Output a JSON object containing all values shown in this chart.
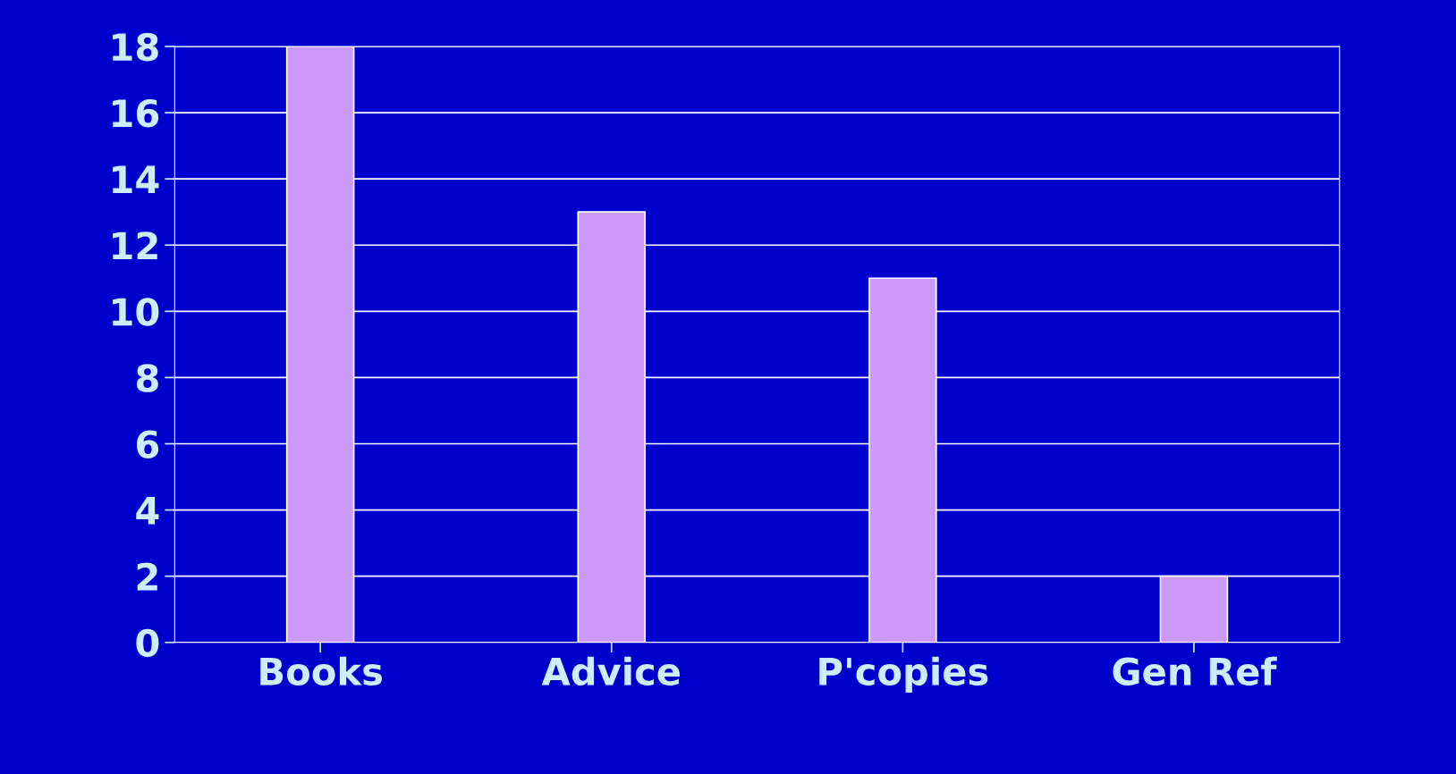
{
  "chart_data": {
    "type": "bar",
    "categories": [
      "Books",
      "Advice",
      "P'copies",
      "Gen Ref"
    ],
    "values": [
      18,
      13,
      11,
      2
    ],
    "color": "#cc99ff",
    "ylim": [
      0,
      18
    ],
    "yticks": [
      0,
      2,
      4,
      6,
      8,
      10,
      12,
      14,
      16,
      18
    ],
    "grid": "y"
  }
}
